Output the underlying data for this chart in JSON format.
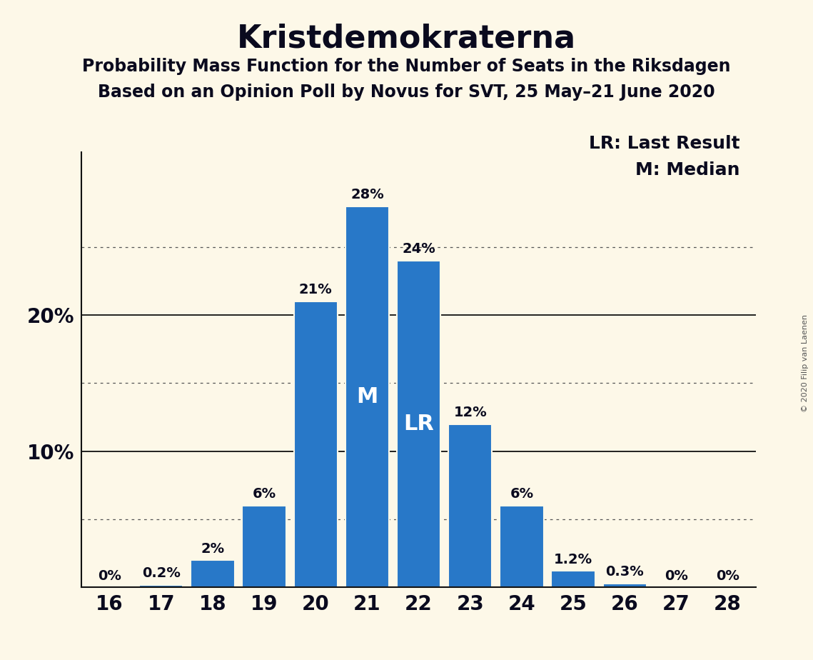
{
  "title": "Kristdemokraterna",
  "subtitle1": "Probability Mass Function for the Number of Seats in the Riksdagen",
  "subtitle2": "Based on an Opinion Poll by Novus for SVT, 25 May–21 June 2020",
  "copyright": "© 2020 Filip van Laenen",
  "categories": [
    16,
    17,
    18,
    19,
    20,
    21,
    22,
    23,
    24,
    25,
    26,
    27,
    28
  ],
  "values": [
    0.0,
    0.2,
    2.0,
    6.0,
    21.0,
    28.0,
    24.0,
    12.0,
    6.0,
    1.2,
    0.3,
    0.0,
    0.0
  ],
  "labels": [
    "0%",
    "0.2%",
    "2%",
    "6%",
    "21%",
    "28%",
    "24%",
    "12%",
    "6%",
    "1.2%",
    "0.3%",
    "0%",
    "0%"
  ],
  "bar_color": "#2878c8",
  "background_color": "#fdf8e8",
  "median_bar": 21,
  "lr_bar": 22,
  "grid_lines_dotted": [
    5,
    15,
    25
  ],
  "grid_lines_solid": [
    10,
    20
  ],
  "ylim": [
    0,
    32
  ],
  "title_fontsize": 32,
  "subtitle_fontsize": 17,
  "axis_tick_fontsize": 20,
  "bar_label_fontsize": 14,
  "legend_fontsize": 18,
  "inner_label_fontsize": 22,
  "copyright_fontsize": 8
}
